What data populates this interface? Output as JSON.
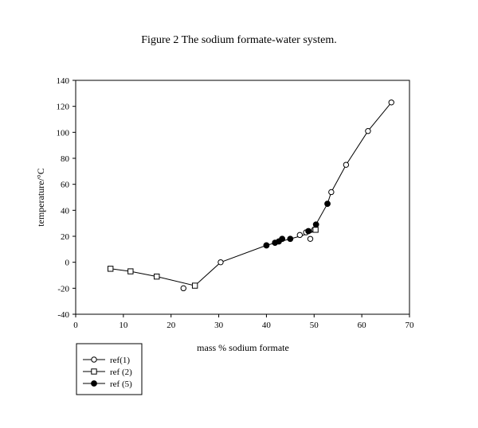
{
  "title": "Figure 2 The sodium formate-water system.",
  "chart_data": {
    "type": "scatter",
    "title": "Figure 2 The sodium formate-water system.",
    "xlabel": "mass % sodium formate",
    "ylabel": "temperature/°C",
    "xlim": [
      0,
      70
    ],
    "ylim": [
      -40,
      140
    ],
    "xticks": [
      0,
      10,
      20,
      30,
      40,
      50,
      60,
      70
    ],
    "yticks": [
      -40,
      -20,
      0,
      20,
      40,
      60,
      80,
      100,
      120,
      140
    ],
    "grid": false,
    "legend_position": "bottom-left",
    "series": [
      {
        "name": "ref(1)",
        "marker": "open-circle",
        "points": [
          [
            22.6,
            -20
          ],
          [
            30.4,
            0
          ],
          [
            47.0,
            21
          ],
          [
            48.3,
            23
          ],
          [
            49.2,
            18
          ],
          [
            50.0,
            25
          ],
          [
            53.6,
            54
          ],
          [
            56.7,
            75
          ],
          [
            61.3,
            101
          ],
          [
            66.2,
            123
          ]
        ]
      },
      {
        "name": "ref (2)",
        "marker": "open-square",
        "points": [
          [
            7.3,
            -5
          ],
          [
            11.5,
            -7
          ],
          [
            17.0,
            -11
          ],
          [
            25.0,
            -18
          ],
          [
            50.3,
            25
          ]
        ]
      },
      {
        "name": "ref (5)",
        "marker": "filled-circle",
        "points": [
          [
            40.0,
            13
          ],
          [
            41.8,
            15
          ],
          [
            42.6,
            16
          ],
          [
            43.3,
            18
          ],
          [
            45.0,
            18
          ],
          [
            48.8,
            24
          ],
          [
            50.4,
            29
          ],
          [
            52.8,
            45
          ]
        ]
      }
    ],
    "curve": {
      "points": [
        [
          7.3,
          -5
        ],
        [
          11.5,
          -7
        ],
        [
          17.0,
          -11
        ],
        [
          25.0,
          -18
        ],
        [
          30.4,
          0
        ],
        [
          40.0,
          13
        ],
        [
          44.0,
          17
        ],
        [
          47.0,
          20
        ],
        [
          49.5,
          23
        ],
        [
          50.5,
          30
        ],
        [
          52.8,
          45
        ],
        [
          53.6,
          54
        ],
        [
          56.7,
          75
        ],
        [
          61.3,
          101
        ],
        [
          66.2,
          123
        ]
      ]
    }
  }
}
